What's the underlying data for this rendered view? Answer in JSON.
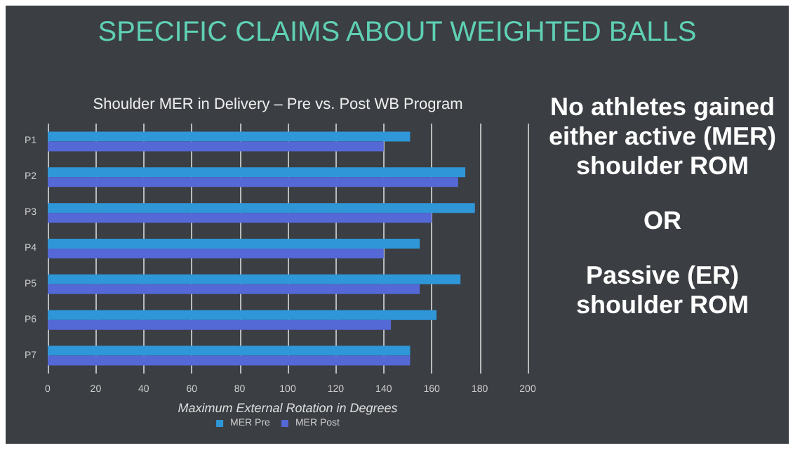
{
  "chart_data": {
    "type": "bar",
    "orientation": "horizontal",
    "title": "SPECIFIC CLAIMS ABOUT WEIGHTED BALLS",
    "subtitle": "Shoulder MER in Delivery – Pre vs. Post WB Program",
    "xlabel": "Maximum External Rotation in Degrees",
    "categories": [
      "P1",
      "P2",
      "P3",
      "P4",
      "P5",
      "P6",
      "P7"
    ],
    "series": [
      {
        "name": "MER Pre",
        "color": "#2f97d8",
        "values": [
          151,
          174,
          178,
          155,
          172,
          162,
          151
        ]
      },
      {
        "name": "MER Post",
        "color": "#5468d6",
        "values": [
          140,
          171,
          160,
          140,
          155,
          143,
          151
        ]
      }
    ],
    "xlim": [
      0,
      200
    ],
    "xticks": [
      0,
      20,
      40,
      60,
      80,
      100,
      120,
      140,
      160,
      180,
      200
    ],
    "grid": "x",
    "legend": "bottom",
    "annotations": [
      "No athletes gained either active (MER) shoulder ROM",
      "OR",
      "Passive (ER) shoulder ROM"
    ]
  }
}
